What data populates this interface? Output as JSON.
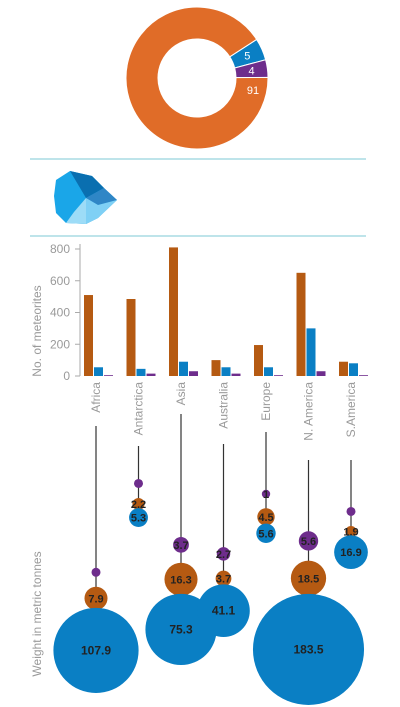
{
  "colors": {
    "orange": "#e06c28",
    "bar_orange": "#b55a12",
    "blue": "#0a7fc4",
    "purple": "#6e2d8c",
    "divider": "#7ec9d4",
    "axis": "#aaaaaa",
    "stem": "#333333"
  },
  "legend_icon": "meteorite-icon",
  "chart_data": [
    {
      "type": "pie",
      "variant": "donut",
      "slices": [
        {
          "value": 91,
          "label": "91",
          "color": "#e06c28"
        },
        {
          "value": 5,
          "label": "5",
          "color": "#0a7fc4"
        },
        {
          "value": 4,
          "label": "4",
          "color": "#6e2d8c"
        }
      ]
    },
    {
      "type": "bar",
      "ylabel": "No. of meteorites",
      "ylim": [
        0,
        850
      ],
      "yticks": [
        0,
        200,
        400,
        600,
        800
      ],
      "grid": false,
      "categories": [
        "Africa",
        "Antarctica",
        "Asia",
        "Australia",
        "Europe",
        "N. America",
        "S.America"
      ],
      "series": [
        {
          "color": "#b55a12",
          "values": [
            510,
            485,
            810,
            100,
            195,
            650,
            90
          ]
        },
        {
          "color": "#0a7fc4",
          "values": [
            55,
            45,
            90,
            55,
            55,
            300,
            80
          ]
        },
        {
          "color": "#6e2d8c",
          "values": [
            5,
            15,
            30,
            15,
            5,
            30,
            5
          ]
        }
      ]
    },
    {
      "type": "scatter",
      "variant": "bubble",
      "ylabel": "Weight in metric tonnes",
      "categories": [
        "Africa",
        "Antarctica",
        "Asia",
        "Australia",
        "Europe",
        "N. America",
        "S.America"
      ],
      "series": [
        {
          "color": "#6e2d8c",
          "values": [
            null,
            null,
            3.7,
            2.7,
            1,
            5.6,
            null
          ],
          "labels": [
            "",
            "",
            "3.7",
            "2.7",
            "1",
            "5.6",
            ""
          ]
        },
        {
          "color": "#b55a12",
          "values": [
            7.9,
            2.2,
            16.3,
            3.7,
            4.5,
            18.5,
            1.9
          ],
          "labels": [
            "7.9",
            "2.2",
            "16.3",
            "3.7",
            "4.5",
            "18.5",
            "1.9"
          ]
        },
        {
          "color": "#0a7fc4",
          "values": [
            107.9,
            5.3,
            75.3,
            41.1,
            5.6,
            183.5,
            16.9
          ],
          "labels": [
            "107.9",
            "5.3",
            "75.3",
            "41.1",
            "5.6",
            "183.5",
            "16.9"
          ]
        }
      ]
    }
  ]
}
